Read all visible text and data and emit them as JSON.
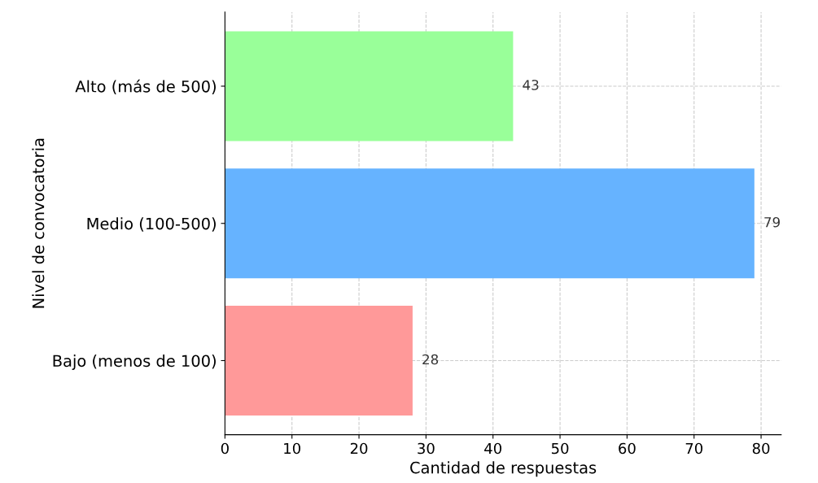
{
  "chart_data": {
    "type": "bar",
    "orientation": "horizontal",
    "xlabel": "Cantidad de respuestas",
    "ylabel": "Nivel de convocatoria",
    "categories": [
      "Alto (más de 500)",
      "Medio (100-500)",
      "Bajo (menos de 100)"
    ],
    "values": [
      43,
      79,
      28
    ],
    "colors": [
      "#99ff99",
      "#66b3ff",
      "#ff9999"
    ],
    "xlim": [
      0,
      83
    ],
    "xticks": [
      0,
      10,
      20,
      30,
      40,
      50,
      60,
      70,
      80
    ],
    "grid": true,
    "data_labels": true
  }
}
